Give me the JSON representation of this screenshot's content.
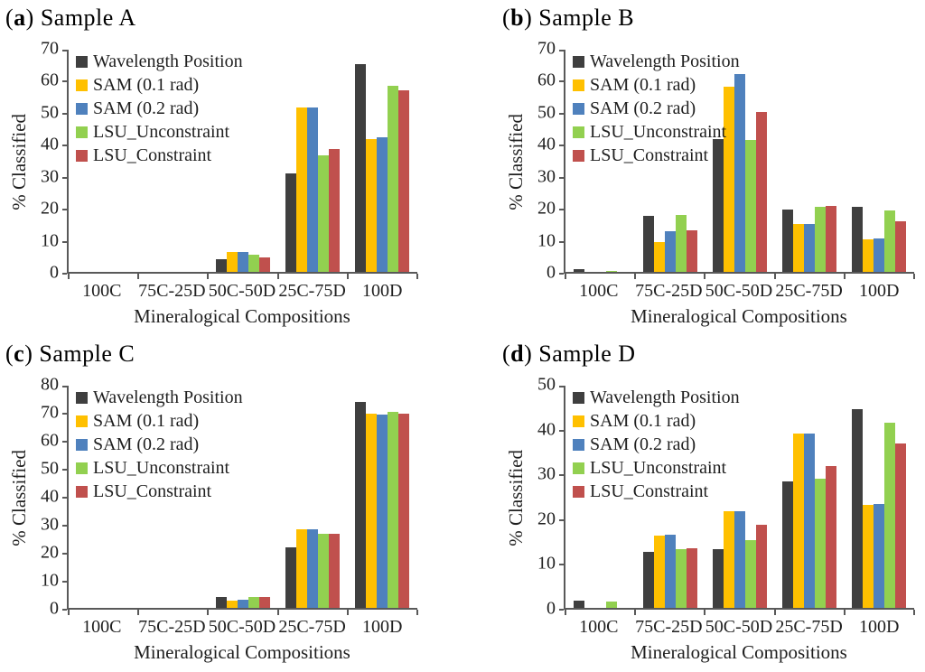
{
  "chart_data": [
    {
      "type": "bar",
      "panel": {
        "prefix": "(",
        "letter": "a",
        "suffix": ") Sample A"
      },
      "title": "Sample A",
      "xlabel": "Mineralogical Compositions",
      "ylabel": "% Classified",
      "ylim": [
        0,
        70
      ],
      "ytick_step": 10,
      "grid": false,
      "legend_position": "top-left",
      "categories": [
        "100C",
        "75C-25D",
        "50C-50D",
        "25C-75D",
        "100D"
      ],
      "series": [
        {
          "name": "Wavelength Position",
          "color": "#3F3F3F",
          "values": [
            0,
            0,
            4.0,
            30.7,
            64.8
          ]
        },
        {
          "name": "SAM (0.1 rad)",
          "color": "#FFC000",
          "values": [
            0,
            0,
            6.2,
            51.5,
            41.6
          ]
        },
        {
          "name": "SAM (0.2 rad)",
          "color": "#4F81BD",
          "values": [
            0,
            0,
            6.1,
            51.5,
            42.0
          ]
        },
        {
          "name": "LSU_Unconstraint",
          "color": "#92D050",
          "values": [
            0,
            0,
            5.3,
            36.3,
            58.2
          ]
        },
        {
          "name": "LSU_Constraint",
          "color": "#C0504D",
          "values": [
            0,
            0,
            4.6,
            38.4,
            56.8
          ]
        }
      ]
    },
    {
      "type": "bar",
      "panel": {
        "prefix": "(",
        "letter": "b",
        "suffix": ") Sample B"
      },
      "title": "Sample B",
      "xlabel": "Mineralogical Compositions",
      "ylabel": "% Classified",
      "ylim": [
        0,
        70
      ],
      "ytick_step": 10,
      "grid": false,
      "legend_position": "top-left",
      "categories": [
        "100C",
        "75C-25D",
        "50C-50D",
        "25C-75D",
        "100D"
      ],
      "series": [
        {
          "name": "Wavelength Position",
          "color": "#3F3F3F",
          "values": [
            0.8,
            17.6,
            41.5,
            19.6,
            20.4
          ]
        },
        {
          "name": "SAM (0.1 rad)",
          "color": "#FFC000",
          "values": [
            0,
            9.2,
            58.0,
            15.1,
            10.3
          ]
        },
        {
          "name": "SAM (0.2 rad)",
          "color": "#4F81BD",
          "values": [
            0,
            12.6,
            61.9,
            15.1,
            10.5
          ]
        },
        {
          "name": "LSU_Unconstraint",
          "color": "#92D050",
          "values": [
            0.4,
            17.9,
            41.1,
            20.4,
            19.1
          ]
        },
        {
          "name": "LSU_Constraint",
          "color": "#C0504D",
          "values": [
            0,
            13.1,
            49.9,
            20.7,
            15.7
          ]
        }
      ]
    },
    {
      "type": "bar",
      "panel": {
        "prefix": "(",
        "letter": "c",
        "suffix": ") Sample C"
      },
      "title": "Sample C",
      "xlabel": "Mineralogical Compositions",
      "ylabel": "% Classified",
      "ylim": [
        0,
        80
      ],
      "ytick_step": 10,
      "grid": false,
      "legend_position": "top-left",
      "categories": [
        "100C",
        "75C-25D",
        "50C-50D",
        "25C-75D",
        "100D"
      ],
      "series": [
        {
          "name": "Wavelength Position",
          "color": "#3F3F3F",
          "values": [
            0,
            0,
            4.0,
            21.7,
            73.7
          ]
        },
        {
          "name": "SAM (0.1 rad)",
          "color": "#FFC000",
          "values": [
            0,
            0,
            2.7,
            28.0,
            69.2
          ]
        },
        {
          "name": "SAM (0.2 rad)",
          "color": "#4F81BD",
          "values": [
            0,
            0,
            2.8,
            28.0,
            69.1
          ]
        },
        {
          "name": "LSU_Unconstraint",
          "color": "#92D050",
          "values": [
            0,
            0,
            3.9,
            26.3,
            69.9
          ]
        },
        {
          "name": "LSU_Constraint",
          "color": "#C0504D",
          "values": [
            0,
            0,
            4.0,
            26.3,
            69.4
          ]
        }
      ]
    },
    {
      "type": "bar",
      "panel": {
        "prefix": "(",
        "letter": "d",
        "suffix": ") Sample D"
      },
      "title": "Sample D",
      "xlabel": "Mineralogical Compositions",
      "ylabel": "% Classified",
      "ylim": [
        0,
        50
      ],
      "ytick_step": 10,
      "grid": false,
      "legend_position": "top-left",
      "categories": [
        "100C",
        "75C-25D",
        "50C-50D",
        "25C-75D",
        "100D"
      ],
      "series": [
        {
          "name": "Wavelength Position",
          "color": "#3F3F3F",
          "values": [
            1.6,
            12.6,
            13.1,
            28.2,
            44.4
          ]
        },
        {
          "name": "SAM (0.1 rad)",
          "color": "#FFC000",
          "values": [
            0,
            16.2,
            21.6,
            38.9,
            22.9
          ]
        },
        {
          "name": "SAM (0.2 rad)",
          "color": "#4F81BD",
          "values": [
            0,
            16.3,
            21.6,
            38.9,
            23.1
          ]
        },
        {
          "name": "LSU_Unconstraint",
          "color": "#92D050",
          "values": [
            1.4,
            13.1,
            15.2,
            28.8,
            41.3
          ]
        },
        {
          "name": "LSU_Constraint",
          "color": "#C0504D",
          "values": [
            0,
            13.3,
            18.5,
            31.6,
            36.6
          ]
        }
      ]
    }
  ],
  "style_colors": {
    "axis": "#595959",
    "text": "#1f1f1f",
    "background": "#ffffff"
  }
}
